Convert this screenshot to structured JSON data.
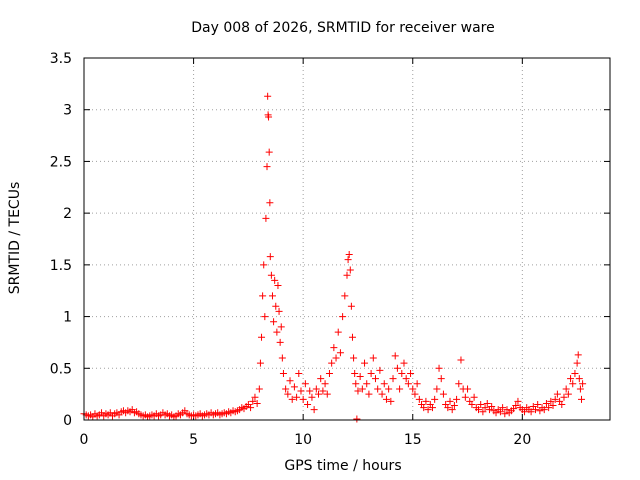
{
  "chart_data": {
    "type": "scatter",
    "title": "Day 008 of 2026, SRMTID for receiver ware",
    "xlabel": "GPS time / hours",
    "ylabel": "SRMTID / TECUs",
    "xlim": [
      0,
      24
    ],
    "ylim": [
      0,
      3.5
    ],
    "x_ticks": [
      0,
      5,
      10,
      15,
      20
    ],
    "x_tick_labels": [
      "0",
      "5",
      "10",
      "15",
      "20"
    ],
    "y_ticks": [
      0,
      0.5,
      1,
      1.5,
      2,
      2.5,
      3,
      3.5
    ],
    "y_tick_labels": [
      "0",
      "0.5",
      "1",
      "1.5",
      "2",
      "2.5",
      "3",
      "3.5"
    ],
    "grid": true,
    "marker": "+",
    "color": "#ff0000",
    "series": [
      {
        "name": "SRMTID",
        "points": [
          [
            0.0,
            0.06
          ],
          [
            0.1,
            0.05
          ],
          [
            0.2,
            0.04
          ],
          [
            0.3,
            0.05
          ],
          [
            0.4,
            0.03
          ],
          [
            0.5,
            0.06
          ],
          [
            0.6,
            0.04
          ],
          [
            0.7,
            0.05
          ],
          [
            0.8,
            0.07
          ],
          [
            0.9,
            0.04
          ],
          [
            1.0,
            0.06
          ],
          [
            1.1,
            0.05
          ],
          [
            1.2,
            0.07
          ],
          [
            1.3,
            0.04
          ],
          [
            1.4,
            0.06
          ],
          [
            1.5,
            0.07
          ],
          [
            1.6,
            0.05
          ],
          [
            1.7,
            0.08
          ],
          [
            1.8,
            0.09
          ],
          [
            1.9,
            0.07
          ],
          [
            2.0,
            0.09
          ],
          [
            2.1,
            0.08
          ],
          [
            2.2,
            0.1
          ],
          [
            2.3,
            0.07
          ],
          [
            2.4,
            0.08
          ],
          [
            2.5,
            0.06
          ],
          [
            2.6,
            0.05
          ],
          [
            2.7,
            0.04
          ],
          [
            2.8,
            0.05
          ],
          [
            2.9,
            0.03
          ],
          [
            3.0,
            0.04
          ],
          [
            3.1,
            0.05
          ],
          [
            3.2,
            0.04
          ],
          [
            3.3,
            0.06
          ],
          [
            3.4,
            0.04
          ],
          [
            3.5,
            0.05
          ],
          [
            3.6,
            0.07
          ],
          [
            3.7,
            0.05
          ],
          [
            3.8,
            0.06
          ],
          [
            3.9,
            0.04
          ],
          [
            4.0,
            0.05
          ],
          [
            4.1,
            0.03
          ],
          [
            4.2,
            0.04
          ],
          [
            4.3,
            0.06
          ],
          [
            4.4,
            0.05
          ],
          [
            4.5,
            0.07
          ],
          [
            4.6,
            0.09
          ],
          [
            4.7,
            0.06
          ],
          [
            4.8,
            0.05
          ],
          [
            4.9,
            0.04
          ],
          [
            5.0,
            0.05
          ],
          [
            5.1,
            0.04
          ],
          [
            5.2,
            0.05
          ],
          [
            5.3,
            0.06
          ],
          [
            5.4,
            0.04
          ],
          [
            5.5,
            0.05
          ],
          [
            5.6,
            0.06
          ],
          [
            5.7,
            0.05
          ],
          [
            5.8,
            0.07
          ],
          [
            5.9,
            0.05
          ],
          [
            6.0,
            0.06
          ],
          [
            6.1,
            0.07
          ],
          [
            6.2,
            0.05
          ],
          [
            6.3,
            0.06
          ],
          [
            6.4,
            0.07
          ],
          [
            6.5,
            0.06
          ],
          [
            6.6,
            0.08
          ],
          [
            6.7,
            0.07
          ],
          [
            6.8,
            0.09
          ],
          [
            6.9,
            0.08
          ],
          [
            7.0,
            0.09
          ],
          [
            7.1,
            0.1
          ],
          [
            7.2,
            0.12
          ],
          [
            7.3,
            0.11
          ],
          [
            7.4,
            0.13
          ],
          [
            7.5,
            0.15
          ],
          [
            7.6,
            0.12
          ],
          [
            7.7,
            0.18
          ],
          [
            7.8,
            0.22
          ],
          [
            7.9,
            0.16
          ],
          [
            8.0,
            0.3
          ],
          [
            8.05,
            0.55
          ],
          [
            8.1,
            0.8
          ],
          [
            8.15,
            1.2
          ],
          [
            8.2,
            1.5
          ],
          [
            8.25,
            1.0
          ],
          [
            8.3,
            1.95
          ],
          [
            8.35,
            2.45
          ],
          [
            8.38,
            3.13
          ],
          [
            8.4,
            2.95
          ],
          [
            8.42,
            2.93
          ],
          [
            8.45,
            2.59
          ],
          [
            8.48,
            2.1
          ],
          [
            8.5,
            1.58
          ],
          [
            8.55,
            1.4
          ],
          [
            8.6,
            1.2
          ],
          [
            8.65,
            0.95
          ],
          [
            8.7,
            1.35
          ],
          [
            8.75,
            1.1
          ],
          [
            8.8,
            0.85
          ],
          [
            8.85,
            1.3
          ],
          [
            8.9,
            1.05
          ],
          [
            8.95,
            0.75
          ],
          [
            9.0,
            0.9
          ],
          [
            9.05,
            0.6
          ],
          [
            9.1,
            0.45
          ],
          [
            9.2,
            0.3
          ],
          [
            9.3,
            0.25
          ],
          [
            9.4,
            0.38
          ],
          [
            9.5,
            0.2
          ],
          [
            9.6,
            0.32
          ],
          [
            9.7,
            0.22
          ],
          [
            9.8,
            0.45
          ],
          [
            9.9,
            0.28
          ],
          [
            10.0,
            0.2
          ],
          [
            10.1,
            0.35
          ],
          [
            10.2,
            0.15
          ],
          [
            10.3,
            0.28
          ],
          [
            10.4,
            0.22
          ],
          [
            10.5,
            0.1
          ],
          [
            10.6,
            0.3
          ],
          [
            10.7,
            0.25
          ],
          [
            10.8,
            0.4
          ],
          [
            10.9,
            0.28
          ],
          [
            11.0,
            0.35
          ],
          [
            11.1,
            0.25
          ],
          [
            11.2,
            0.45
          ],
          [
            11.3,
            0.55
          ],
          [
            11.4,
            0.7
          ],
          [
            11.5,
            0.6
          ],
          [
            11.6,
            0.85
          ],
          [
            11.7,
            0.65
          ],
          [
            11.8,
            1.0
          ],
          [
            11.9,
            1.2
          ],
          [
            12.0,
            1.4
          ],
          [
            12.05,
            1.55
          ],
          [
            12.1,
            1.6
          ],
          [
            12.15,
            1.45
          ],
          [
            12.2,
            1.1
          ],
          [
            12.25,
            0.8
          ],
          [
            12.3,
            0.6
          ],
          [
            12.35,
            0.45
          ],
          [
            12.4,
            0.35
          ],
          [
            12.45,
            0.01
          ],
          [
            12.5,
            0.28
          ],
          [
            12.6,
            0.42
          ],
          [
            12.7,
            0.3
          ],
          [
            12.8,
            0.55
          ],
          [
            12.9,
            0.35
          ],
          [
            13.0,
            0.25
          ],
          [
            13.1,
            0.45
          ],
          [
            13.2,
            0.6
          ],
          [
            13.3,
            0.4
          ],
          [
            13.4,
            0.3
          ],
          [
            13.5,
            0.48
          ],
          [
            13.6,
            0.25
          ],
          [
            13.7,
            0.35
          ],
          [
            13.8,
            0.2
          ],
          [
            13.9,
            0.3
          ],
          [
            14.0,
            0.18
          ],
          [
            14.1,
            0.4
          ],
          [
            14.2,
            0.62
          ],
          [
            14.3,
            0.5
          ],
          [
            14.4,
            0.3
          ],
          [
            14.5,
            0.45
          ],
          [
            14.6,
            0.55
          ],
          [
            14.7,
            0.4
          ],
          [
            14.8,
            0.35
          ],
          [
            14.9,
            0.45
          ],
          [
            15.0,
            0.3
          ],
          [
            15.1,
            0.25
          ],
          [
            15.2,
            0.35
          ],
          [
            15.3,
            0.2
          ],
          [
            15.4,
            0.15
          ],
          [
            15.5,
            0.12
          ],
          [
            15.6,
            0.18
          ],
          [
            15.7,
            0.1
          ],
          [
            15.8,
            0.15
          ],
          [
            15.9,
            0.12
          ],
          [
            16.0,
            0.2
          ],
          [
            16.1,
            0.3
          ],
          [
            16.2,
            0.5
          ],
          [
            16.3,
            0.4
          ],
          [
            16.4,
            0.25
          ],
          [
            16.5,
            0.15
          ],
          [
            16.6,
            0.12
          ],
          [
            16.7,
            0.18
          ],
          [
            16.8,
            0.1
          ],
          [
            16.9,
            0.14
          ],
          [
            17.0,
            0.2
          ],
          [
            17.1,
            0.35
          ],
          [
            17.2,
            0.58
          ],
          [
            17.3,
            0.3
          ],
          [
            17.4,
            0.22
          ],
          [
            17.5,
            0.3
          ],
          [
            17.6,
            0.18
          ],
          [
            17.7,
            0.15
          ],
          [
            17.8,
            0.22
          ],
          [
            17.9,
            0.12
          ],
          [
            18.0,
            0.1
          ],
          [
            18.1,
            0.15
          ],
          [
            18.2,
            0.08
          ],
          [
            18.3,
            0.12
          ],
          [
            18.4,
            0.16
          ],
          [
            18.5,
            0.1
          ],
          [
            18.6,
            0.13
          ],
          [
            18.7,
            0.09
          ],
          [
            18.8,
            0.07
          ],
          [
            18.9,
            0.1
          ],
          [
            19.0,
            0.08
          ],
          [
            19.1,
            0.12
          ],
          [
            19.2,
            0.06
          ],
          [
            19.3,
            0.1
          ],
          [
            19.4,
            0.07
          ],
          [
            19.5,
            0.09
          ],
          [
            19.6,
            0.11
          ],
          [
            19.7,
            0.14
          ],
          [
            19.8,
            0.18
          ],
          [
            19.9,
            0.12
          ],
          [
            20.0,
            0.1
          ],
          [
            20.1,
            0.08
          ],
          [
            20.2,
            0.12
          ],
          [
            20.3,
            0.1
          ],
          [
            20.4,
            0.08
          ],
          [
            20.5,
            0.13
          ],
          [
            20.6,
            0.1
          ],
          [
            20.7,
            0.15
          ],
          [
            20.8,
            0.09
          ],
          [
            20.9,
            0.12
          ],
          [
            21.0,
            0.1
          ],
          [
            21.1,
            0.16
          ],
          [
            21.2,
            0.12
          ],
          [
            21.3,
            0.18
          ],
          [
            21.4,
            0.14
          ],
          [
            21.5,
            0.2
          ],
          [
            21.6,
            0.25
          ],
          [
            21.7,
            0.18
          ],
          [
            21.8,
            0.15
          ],
          [
            21.9,
            0.22
          ],
          [
            22.0,
            0.3
          ],
          [
            22.1,
            0.25
          ],
          [
            22.2,
            0.4
          ],
          [
            22.3,
            0.35
          ],
          [
            22.4,
            0.45
          ],
          [
            22.5,
            0.55
          ],
          [
            22.55,
            0.63
          ],
          [
            22.6,
            0.4
          ],
          [
            22.65,
            0.3
          ],
          [
            22.7,
            0.2
          ],
          [
            22.75,
            0.35
          ]
        ]
      }
    ]
  }
}
